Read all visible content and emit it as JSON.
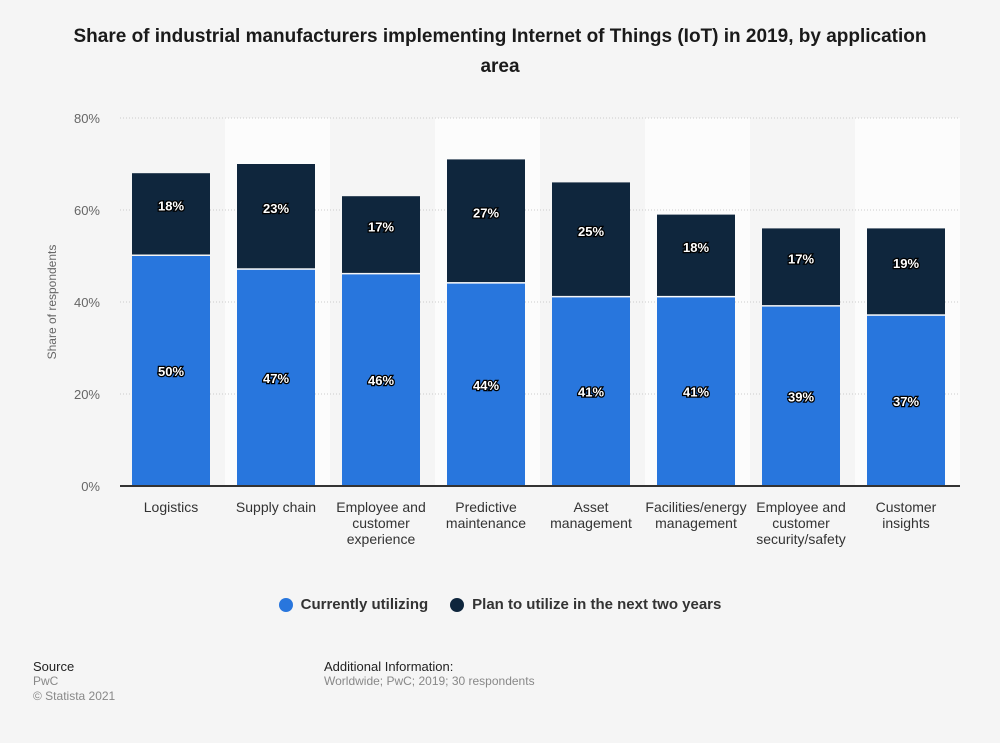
{
  "chart_data": {
    "type": "bar",
    "stacked": true,
    "title": "Share of industrial manufacturers implementing Internet of Things (IoT) in 2019, by application area",
    "ylabel": "Share of respondents",
    "ylim": [
      0,
      80
    ],
    "yticks": [
      "0%",
      "20%",
      "40%",
      "60%",
      "80%"
    ],
    "grid": true,
    "legend_position": "bottom",
    "categories": [
      [
        "Logistics"
      ],
      [
        "Supply chain"
      ],
      [
        "Employee and",
        "customer",
        "experience"
      ],
      [
        "Predictive",
        "maintenance"
      ],
      [
        "Asset",
        "management"
      ],
      [
        "Facilities/energy",
        "management"
      ],
      [
        "Employee and",
        "customer",
        "security/safety"
      ],
      [
        "Customer",
        "insights"
      ]
    ],
    "series": [
      {
        "name": "Currently utilizing",
        "color": "#2876dd",
        "values": [
          50,
          47,
          46,
          44,
          41,
          41,
          39,
          37
        ]
      },
      {
        "name": "Plan to utilize in the next two years",
        "color": "#0f263d",
        "values": [
          18,
          23,
          17,
          27,
          25,
          18,
          17,
          19
        ]
      }
    ]
  },
  "footer": {
    "source_label": "Source",
    "source": "PwC",
    "copyright": "© Statista 2021",
    "info_label": "Additional Information:",
    "info": "Worldwide; PwC; 2019; 30 respondents"
  }
}
